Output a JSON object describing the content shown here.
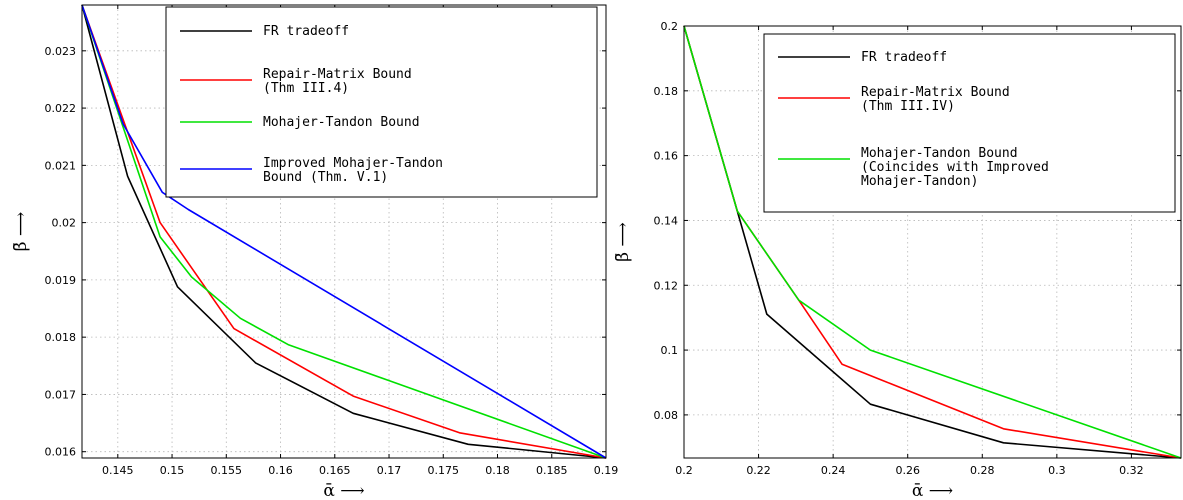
{
  "chart_data": [
    {
      "type": "line",
      "xlabel": "ᾱ ⟶",
      "ylabel": "β̄ ⟶",
      "xlim": [
        0.1417,
        0.19
      ],
      "ylim": [
        0.01589,
        0.0238
      ],
      "xticks": [
        "0.145",
        "0.15",
        "0.155",
        "0.16",
        "0.165",
        "0.17",
        "0.175",
        "0.18",
        "0.185",
        "0.19"
      ],
      "xtick_values": [
        0.145,
        0.15,
        0.155,
        0.16,
        0.165,
        0.17,
        0.175,
        0.18,
        0.185,
        0.19
      ],
      "yticks": [
        "0.016",
        "0.017",
        "0.018",
        "0.019",
        "0.02",
        "0.021",
        "0.022",
        "0.023"
      ],
      "ytick_values": [
        0.016,
        0.017,
        0.018,
        0.019,
        0.02,
        0.021,
        0.022,
        0.023
      ],
      "grid": true,
      "legend_position": "top-right",
      "series": [
        {
          "name": "FR tradeoff",
          "color": "#000000",
          "x": [
            0.1417,
            0.1459,
            0.1505,
            0.1577,
            0.1667,
            0.1773,
            0.19
          ],
          "y": [
            0.0238,
            0.02081,
            0.01888,
            0.01755,
            0.01667,
            0.01613,
            0.01589
          ]
        },
        {
          "name": "Repair-Matrix Bound (Thm III.4)",
          "color": "#ff0000",
          "x": [
            0.1417,
            0.1489,
            0.1557,
            0.1667,
            0.1765,
            0.19
          ],
          "y": [
            0.0238,
            0.02,
            0.01815,
            0.01697,
            0.01633,
            0.01589
          ]
        },
        {
          "name": "Mohajer-Tandon Bound",
          "color": "#00e000",
          "x": [
            0.1417,
            0.1489,
            0.1518,
            0.1563,
            0.1607,
            0.19
          ],
          "y": [
            0.0238,
            0.01975,
            0.01905,
            0.01833,
            0.01787,
            0.01589
          ]
        },
        {
          "name": "Improved Mohajer-Tandon Bound (Thm. V.1)",
          "color": "#0000ff",
          "x": [
            0.1417,
            0.1455,
            0.1491,
            0.1515,
            0.19
          ],
          "y": [
            0.0238,
            0.02172,
            0.02053,
            0.02023,
            0.01589
          ]
        }
      ]
    },
    {
      "type": "line",
      "xlabel": "ᾱ ⟶",
      "ylabel": "β̄ ⟶",
      "xlim": [
        0.2,
        0.3333
      ],
      "ylim": [
        0.0667,
        0.2
      ],
      "xticks": [
        "0.2",
        "0.22",
        "0.24",
        "0.26",
        "0.28",
        "0.3",
        "0.32"
      ],
      "xtick_values": [
        0.2,
        0.22,
        0.24,
        0.26,
        0.28,
        0.3,
        0.32
      ],
      "yticks": [
        "0.08",
        "0.1",
        "0.12",
        "0.14",
        "0.16",
        "0.18",
        "0.2"
      ],
      "ytick_values": [
        0.08,
        0.1,
        0.12,
        0.14,
        0.16,
        0.18,
        0.2
      ],
      "grid": true,
      "legend_position": "top-right",
      "series": [
        {
          "name": "FR tradeoff",
          "color": "#000000",
          "x": [
            0.2,
            0.2143,
            0.2222,
            0.25,
            0.2857,
            0.3333
          ],
          "y": [
            0.2,
            0.1429,
            0.1111,
            0.0833,
            0.0714,
            0.0667
          ]
        },
        {
          "name": "Repair-Matrix Bound (Thm III.IV)",
          "color": "#ff0000",
          "x": [
            0.2,
            0.2143,
            0.2308,
            0.2424,
            0.2857,
            0.3333
          ],
          "y": [
            0.2,
            0.1429,
            0.1154,
            0.0956,
            0.0757,
            0.0667
          ]
        },
        {
          "name": "Mohajer-Tandon Bound (Coincides with Improved Mohajer-Tandon)",
          "color": "#00e000",
          "x": [
            0.2,
            0.2143,
            0.2308,
            0.25,
            0.3333
          ],
          "y": [
            0.2,
            0.1429,
            0.1154,
            0.1,
            0.0667
          ]
        }
      ]
    }
  ],
  "legends": [
    [
      [
        "FR tradeoff"
      ],
      [
        "Repair-Matrix Bound",
        "(Thm III.4)"
      ],
      [
        "Mohajer-Tandon Bound"
      ],
      [
        "Improved Mohajer-Tandon",
        "Bound (Thm. V.1)"
      ]
    ],
    [
      [
        "FR tradeoff"
      ],
      [
        "Repair-Matrix Bound",
        "(Thm III.IV)"
      ],
      [
        "Mohajer-Tandon Bound",
        "(Coincides with Improved",
        "Mohajer-Tandon)"
      ]
    ]
  ]
}
